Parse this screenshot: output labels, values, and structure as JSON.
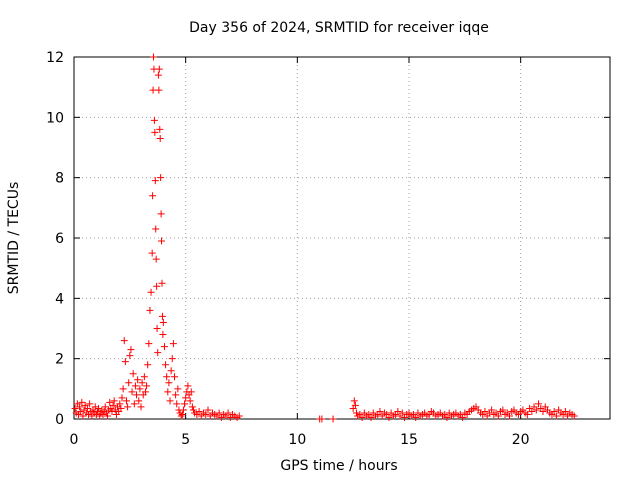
{
  "chart_data": {
    "type": "scatter",
    "title": "Day 356 of 2024, SRMTID for receiver iqqe",
    "xlabel": "GPS time / hours",
    "ylabel": "SRMTID / TECUs",
    "xlim": [
      0,
      24
    ],
    "ylim": [
      0,
      12
    ],
    "xticks": [
      0,
      5,
      10,
      15,
      20
    ],
    "yticks": [
      0,
      2,
      4,
      6,
      8,
      10,
      12
    ],
    "grid": true,
    "legend": "none",
    "marker": "+",
    "color": "#ff0000",
    "series": [
      {
        "points": [
          [
            0.05,
            0.35
          ],
          [
            0.1,
            0.2
          ],
          [
            0.15,
            0.5
          ],
          [
            0.2,
            0.15
          ],
          [
            0.25,
            0.4
          ],
          [
            0.3,
            0.25
          ],
          [
            0.35,
            0.55
          ],
          [
            0.4,
            0.1
          ],
          [
            0.45,
            0.3
          ],
          [
            0.5,
            0.45
          ],
          [
            0.55,
            0.2
          ],
          [
            0.6,
            0.35
          ],
          [
            0.65,
            0.15
          ],
          [
            0.7,
            0.5
          ],
          [
            0.75,
            0.25
          ],
          [
            0.8,
            0.1
          ],
          [
            0.85,
            0.3
          ],
          [
            0.9,
            0.2
          ],
          [
            0.95,
            0.4
          ],
          [
            1.0,
            0.15
          ],
          [
            1.05,
            0.25
          ],
          [
            1.1,
            0.35
          ],
          [
            1.15,
            0.1
          ],
          [
            1.2,
            0.2
          ],
          [
            1.25,
            0.3
          ],
          [
            1.3,
            0.15
          ],
          [
            1.35,
            0.25
          ],
          [
            1.4,
            0.4
          ],
          [
            1.45,
            0.2
          ],
          [
            1.5,
            0.1
          ],
          [
            1.55,
            0.3
          ],
          [
            1.6,
            0.55
          ],
          [
            1.65,
            0.35
          ],
          [
            1.7,
            0.25
          ],
          [
            1.75,
            0.45
          ],
          [
            1.8,
            0.6
          ],
          [
            1.85,
            0.3
          ],
          [
            1.9,
            0.15
          ],
          [
            1.95,
            0.4
          ],
          [
            2.0,
            0.25
          ],
          [
            2.05,
            0.5
          ],
          [
            2.1,
            0.35
          ],
          [
            2.15,
            0.7
          ],
          [
            2.2,
            1.0
          ],
          [
            2.25,
            2.6
          ],
          [
            2.3,
            1.9
          ],
          [
            2.35,
            0.6
          ],
          [
            2.4,
            0.4
          ],
          [
            2.45,
            1.2
          ],
          [
            2.5,
            2.1
          ],
          [
            2.55,
            2.3
          ],
          [
            2.6,
            0.9
          ],
          [
            2.65,
            1.5
          ],
          [
            2.7,
            0.5
          ],
          [
            2.75,
            1.1
          ],
          [
            2.8,
            0.8
          ],
          [
            2.85,
            1.3
          ],
          [
            2.9,
            0.6
          ],
          [
            2.95,
            1.0
          ],
          [
            3.0,
            0.4
          ],
          [
            3.05,
            1.2
          ],
          [
            3.1,
            0.8
          ],
          [
            3.15,
            1.4
          ],
          [
            3.2,
            0.9
          ],
          [
            3.25,
            1.1
          ],
          [
            3.3,
            1.8
          ],
          [
            3.35,
            2.5
          ],
          [
            3.4,
            3.6
          ],
          [
            3.45,
            4.2
          ],
          [
            3.5,
            5.5
          ],
          [
            3.52,
            7.4
          ],
          [
            3.54,
            10.9
          ],
          [
            3.56,
            12.0
          ],
          [
            3.58,
            11.6
          ],
          [
            3.6,
            9.9
          ],
          [
            3.62,
            9.5
          ],
          [
            3.64,
            7.9
          ],
          [
            3.66,
            6.3
          ],
          [
            3.68,
            5.3
          ],
          [
            3.7,
            4.4
          ],
          [
            3.72,
            3.0
          ],
          [
            3.75,
            2.2
          ],
          [
            3.78,
            11.4
          ],
          [
            3.8,
            10.9
          ],
          [
            3.82,
            11.6
          ],
          [
            3.84,
            9.6
          ],
          [
            3.86,
            9.3
          ],
          [
            3.88,
            8.0
          ],
          [
            3.9,
            6.8
          ],
          [
            3.92,
            5.9
          ],
          [
            3.94,
            4.5
          ],
          [
            3.96,
            3.4
          ],
          [
            3.98,
            2.8
          ],
          [
            4.0,
            3.2
          ],
          [
            4.05,
            2.4
          ],
          [
            4.1,
            1.8
          ],
          [
            4.15,
            1.4
          ],
          [
            4.2,
            0.9
          ],
          [
            4.25,
            1.2
          ],
          [
            4.3,
            0.6
          ],
          [
            4.35,
            1.6
          ],
          [
            4.4,
            2.0
          ],
          [
            4.45,
            2.5
          ],
          [
            4.5,
            1.4
          ],
          [
            4.55,
            0.8
          ],
          [
            4.6,
            0.5
          ],
          [
            4.65,
            1.0
          ],
          [
            4.7,
            0.3
          ],
          [
            4.75,
            0.2
          ],
          [
            4.8,
            0.1
          ],
          [
            4.85,
            0.15
          ],
          [
            4.9,
            0.3
          ],
          [
            4.95,
            0.5
          ],
          [
            5.0,
            0.7
          ],
          [
            5.05,
            0.9
          ],
          [
            5.1,
            1.1
          ],
          [
            5.15,
            0.8
          ],
          [
            5.2,
            0.6
          ],
          [
            5.25,
            0.9
          ],
          [
            5.3,
            0.4
          ],
          [
            5.35,
            0.3
          ],
          [
            5.4,
            0.2
          ],
          [
            5.5,
            0.15
          ],
          [
            5.6,
            0.25
          ],
          [
            5.7,
            0.1
          ],
          [
            5.8,
            0.2
          ],
          [
            5.9,
            0.15
          ],
          [
            6.0,
            0.3
          ],
          [
            6.1,
            0.1
          ],
          [
            6.2,
            0.2
          ],
          [
            6.3,
            0.15
          ],
          [
            6.4,
            0.1
          ],
          [
            6.5,
            0.2
          ],
          [
            6.6,
            0.05
          ],
          [
            6.7,
            0.15
          ],
          [
            6.8,
            0.1
          ],
          [
            6.9,
            0.2
          ],
          [
            7.0,
            0.05
          ],
          [
            7.1,
            0.15
          ],
          [
            7.2,
            0.1
          ],
          [
            7.3,
            0.05
          ],
          [
            7.4,
            0.1
          ],
          [
            11.0,
            0.0
          ],
          [
            11.1,
            0.0
          ],
          [
            11.6,
            0.0
          ],
          [
            12.5,
            0.35
          ],
          [
            12.55,
            0.6
          ],
          [
            12.6,
            0.45
          ],
          [
            12.65,
            0.2
          ],
          [
            12.7,
            0.1
          ],
          [
            12.8,
            0.15
          ],
          [
            12.9,
            0.05
          ],
          [
            13.0,
            0.2
          ],
          [
            13.1,
            0.1
          ],
          [
            13.2,
            0.15
          ],
          [
            13.3,
            0.05
          ],
          [
            13.4,
            0.2
          ],
          [
            13.5,
            0.1
          ],
          [
            13.6,
            0.15
          ],
          [
            13.7,
            0.25
          ],
          [
            13.8,
            0.1
          ],
          [
            13.9,
            0.2
          ],
          [
            14.0,
            0.15
          ],
          [
            14.1,
            0.05
          ],
          [
            14.2,
            0.2
          ],
          [
            14.3,
            0.1
          ],
          [
            14.4,
            0.15
          ],
          [
            14.5,
            0.25
          ],
          [
            14.6,
            0.1
          ],
          [
            14.7,
            0.2
          ],
          [
            14.8,
            0.05
          ],
          [
            14.9,
            0.15
          ],
          [
            15.0,
            0.2
          ],
          [
            15.1,
            0.1
          ],
          [
            15.2,
            0.15
          ],
          [
            15.3,
            0.05
          ],
          [
            15.4,
            0.2
          ],
          [
            15.5,
            0.1
          ],
          [
            15.6,
            0.15
          ],
          [
            15.7,
            0.2
          ],
          [
            15.8,
            0.1
          ],
          [
            15.9,
            0.15
          ],
          [
            16.0,
            0.25
          ],
          [
            16.1,
            0.2
          ],
          [
            16.2,
            0.1
          ],
          [
            16.3,
            0.15
          ],
          [
            16.4,
            0.2
          ],
          [
            16.5,
            0.1
          ],
          [
            16.6,
            0.15
          ],
          [
            16.7,
            0.05
          ],
          [
            16.8,
            0.2
          ],
          [
            16.9,
            0.1
          ],
          [
            17.0,
            0.15
          ],
          [
            17.1,
            0.2
          ],
          [
            17.2,
            0.1
          ],
          [
            17.3,
            0.15
          ],
          [
            17.4,
            0.05
          ],
          [
            17.5,
            0.2
          ],
          [
            17.6,
            0.15
          ],
          [
            17.7,
            0.25
          ],
          [
            17.8,
            0.3
          ],
          [
            17.9,
            0.35
          ],
          [
            18.0,
            0.4
          ],
          [
            18.1,
            0.3
          ],
          [
            18.2,
            0.2
          ],
          [
            18.3,
            0.15
          ],
          [
            18.4,
            0.25
          ],
          [
            18.5,
            0.1
          ],
          [
            18.6,
            0.2
          ],
          [
            18.7,
            0.3
          ],
          [
            18.8,
            0.15
          ],
          [
            18.9,
            0.2
          ],
          [
            19.0,
            0.1
          ],
          [
            19.1,
            0.25
          ],
          [
            19.2,
            0.3
          ],
          [
            19.3,
            0.15
          ],
          [
            19.4,
            0.2
          ],
          [
            19.5,
            0.1
          ],
          [
            19.6,
            0.25
          ],
          [
            19.7,
            0.3
          ],
          [
            19.8,
            0.2
          ],
          [
            19.9,
            0.15
          ],
          [
            20.0,
            0.25
          ],
          [
            20.1,
            0.3
          ],
          [
            20.2,
            0.2
          ],
          [
            20.3,
            0.15
          ],
          [
            20.4,
            0.35
          ],
          [
            20.5,
            0.25
          ],
          [
            20.6,
            0.4
          ],
          [
            20.7,
            0.3
          ],
          [
            20.8,
            0.5
          ],
          [
            20.9,
            0.35
          ],
          [
            21.0,
            0.25
          ],
          [
            21.1,
            0.4
          ],
          [
            21.2,
            0.3
          ],
          [
            21.3,
            0.2
          ],
          [
            21.4,
            0.15
          ],
          [
            21.5,
            0.25
          ],
          [
            21.6,
            0.1
          ],
          [
            21.7,
            0.3
          ],
          [
            21.8,
            0.2
          ],
          [
            21.9,
            0.15
          ],
          [
            22.0,
            0.25
          ],
          [
            22.1,
            0.1
          ],
          [
            22.2,
            0.2
          ],
          [
            22.3,
            0.15
          ],
          [
            22.4,
            0.1
          ]
        ]
      }
    ]
  }
}
